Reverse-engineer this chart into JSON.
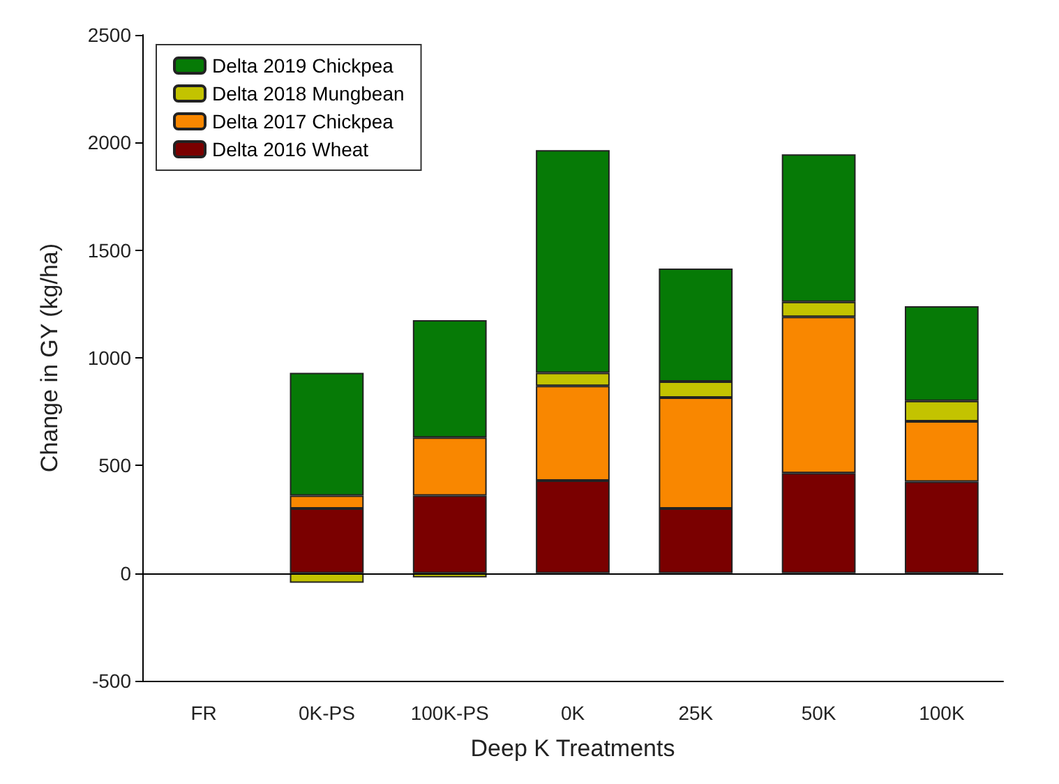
{
  "chart_data": {
    "type": "bar",
    "stacked": true,
    "xlabel": "Deep K Treatments",
    "ylabel": "Change in GY (kg/ha)",
    "categories": [
      "FR",
      "0K-PS",
      "100K-PS",
      "0K",
      "25K",
      "50K",
      "100K"
    ],
    "series": [
      {
        "name": "Delta 2016 Wheat",
        "color": "#7a0000",
        "values": [
          null,
          300,
          360,
          430,
          300,
          465,
          425
        ]
      },
      {
        "name": "Delta 2017 Chickpea",
        "color": "#f98700",
        "values": [
          null,
          60,
          270,
          440,
          515,
          725,
          280
        ]
      },
      {
        "name": "Delta 2018 Mungbean",
        "color": "#c3c300",
        "values": [
          null,
          -45,
          -20,
          60,
          75,
          70,
          95
        ]
      },
      {
        "name": "Delta 2019 Chickpea",
        "color": "#067a06",
        "values": [
          null,
          570,
          545,
          1035,
          525,
          685,
          440
        ]
      }
    ],
    "ylim": [
      -500,
      2500
    ],
    "yticks": [
      -500,
      0,
      500,
      1000,
      1500,
      2000,
      2500
    ],
    "ref_lines": [
      {
        "axis": "y",
        "value": 0,
        "label": null
      }
    ],
    "grid": false,
    "legend": "top left"
  }
}
